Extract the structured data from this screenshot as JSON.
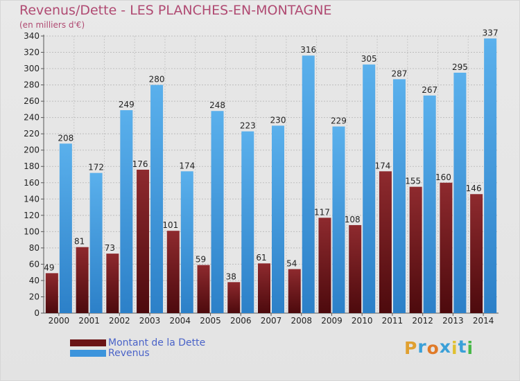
{
  "chart_data": {
    "type": "bar",
    "title": "Revenus/Dette - LES PLANCHES-EN-MONTAGNE",
    "subtitle": "(en milliers d'€)",
    "xlabel": "",
    "ylabel": "",
    "ylim": [
      0,
      340
    ],
    "yticks": [
      0,
      20,
      40,
      60,
      80,
      100,
      120,
      140,
      160,
      180,
      200,
      220,
      240,
      260,
      280,
      300,
      320,
      340
    ],
    "grid": true,
    "legend_position": "bottom-left",
    "categories": [
      "2000",
      "2001",
      "2002",
      "2003",
      "2004",
      "2005",
      "2006",
      "2007",
      "2008",
      "2009",
      "2010",
      "2011",
      "2012",
      "2013",
      "2014"
    ],
    "series": [
      {
        "name": "Montant de la Dette",
        "color": "#7a1e22",
        "values": [
          49,
          81,
          73,
          176,
          101,
          59,
          38,
          61,
          54,
          117,
          108,
          174,
          155,
          160,
          146
        ]
      },
      {
        "name": "Revenus",
        "color": "#4a9ee0",
        "values": [
          208,
          172,
          249,
          280,
          174,
          248,
          223,
          230,
          316,
          229,
          305,
          287,
          267,
          295,
          337
        ]
      }
    ]
  },
  "legend": {
    "items": [
      {
        "label": "Montant de la Dette",
        "color": "#6b1416"
      },
      {
        "label": "Revenus",
        "color": "#3c94dc"
      }
    ]
  },
  "logo": {
    "letters": [
      "P",
      "r",
      "o",
      "x",
      "i",
      "t",
      "i"
    ],
    "colors": [
      "#e0a030",
      "#3aa0d8",
      "#e07a28",
      "#3aa0d8",
      "#e0c030",
      "#3aa0d8",
      "#48b848"
    ]
  }
}
